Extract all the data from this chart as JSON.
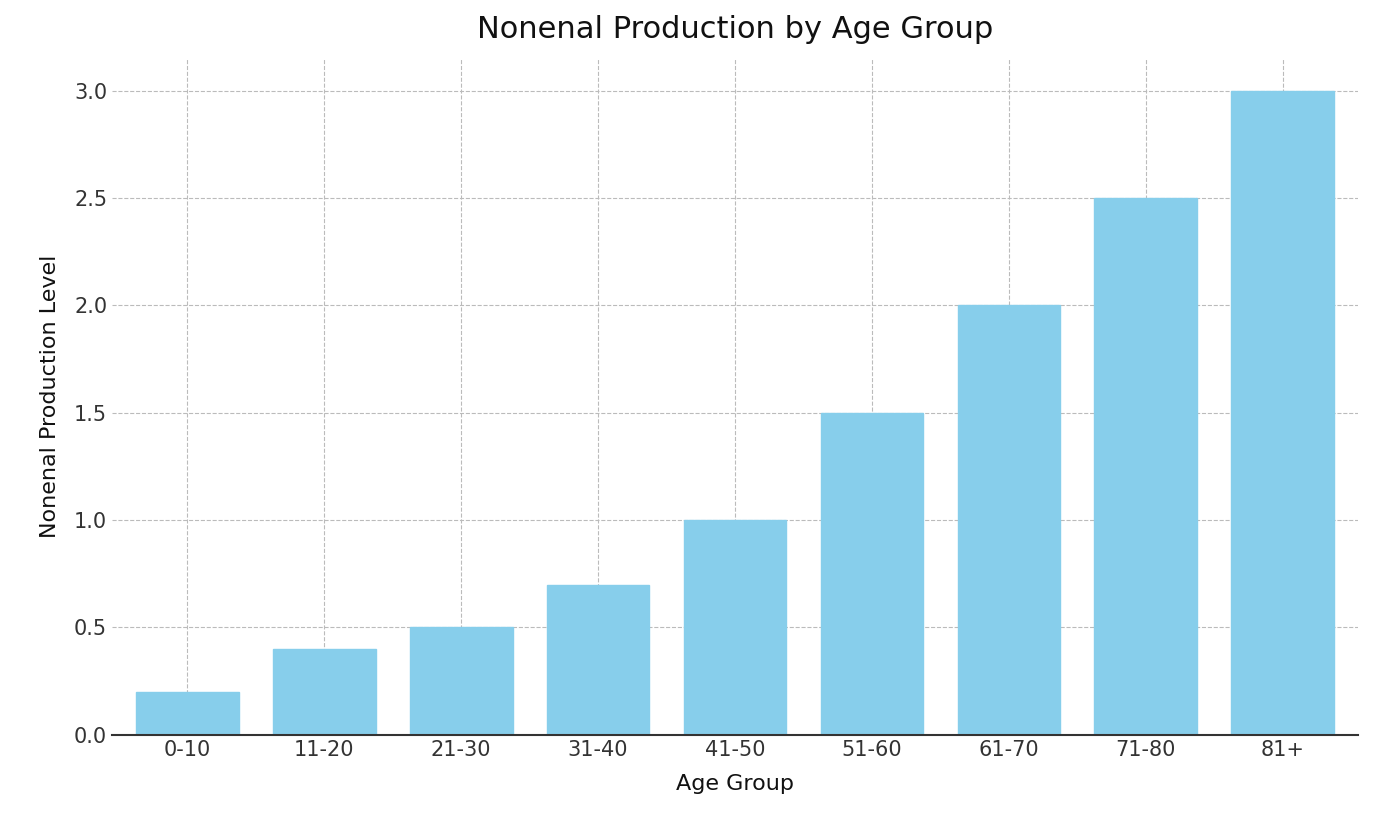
{
  "categories": [
    "0-10",
    "11-20",
    "21-30",
    "31-40",
    "41-50",
    "51-60",
    "61-70",
    "71-80",
    "81+"
  ],
  "values": [
    0.2,
    0.4,
    0.5,
    0.7,
    1.0,
    1.5,
    2.0,
    2.5,
    3.0
  ],
  "bar_color": "#87CEEB",
  "title": "Nonenal Production by Age Group",
  "xlabel": "Age Group",
  "ylabel": "Nonenal Production Level",
  "ylim": [
    0,
    3.15
  ],
  "yticks": [
    0.0,
    0.5,
    1.0,
    1.5,
    2.0,
    2.5,
    3.0
  ],
  "title_fontsize": 22,
  "label_fontsize": 16,
  "tick_fontsize": 15,
  "background_color": "#ffffff",
  "grid_color": "#bbbbbb",
  "bar_width": 0.75
}
